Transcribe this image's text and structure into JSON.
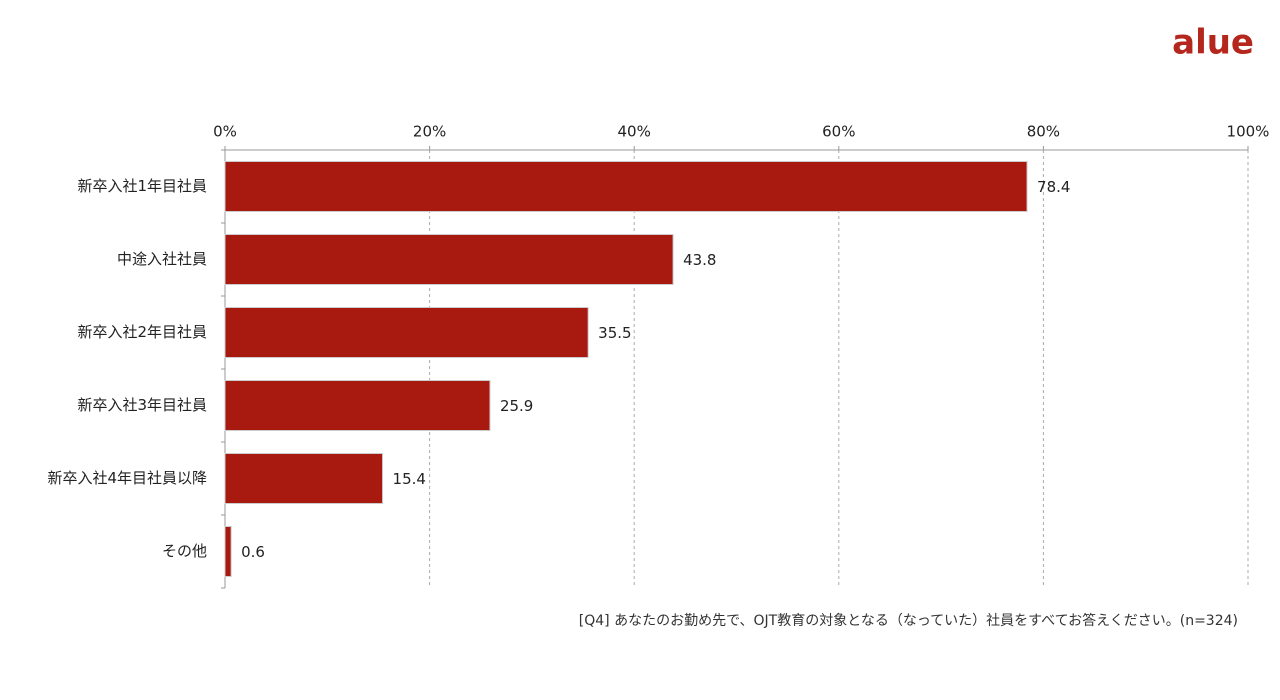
{
  "brand": "alue",
  "chart_data": {
    "type": "bar",
    "orientation": "horizontal",
    "categories": [
      "新卒入社1年目社員",
      "中途入社社員",
      "新卒入社2年目社員",
      "新卒入社3年目社員",
      "新卒入社4年目社員以降",
      "その他"
    ],
    "values": [
      78.4,
      43.8,
      35.5,
      25.9,
      15.4,
      0.6
    ],
    "color": "#a8190f",
    "xlim": [
      0,
      100
    ],
    "xticks": [
      {
        "value": 0,
        "label": "0%"
      },
      {
        "value": 20,
        "label": "20%"
      },
      {
        "value": 40,
        "label": "40%"
      },
      {
        "value": 60,
        "label": "60%"
      },
      {
        "value": 80,
        "label": "80%"
      },
      {
        "value": 100,
        "label": "100%"
      }
    ],
    "grid": true,
    "note": "[Q4] あなたのお勤め先で、OJT教育の対象となる（なっていた）社員をすべてお答えください。(n=324)"
  }
}
